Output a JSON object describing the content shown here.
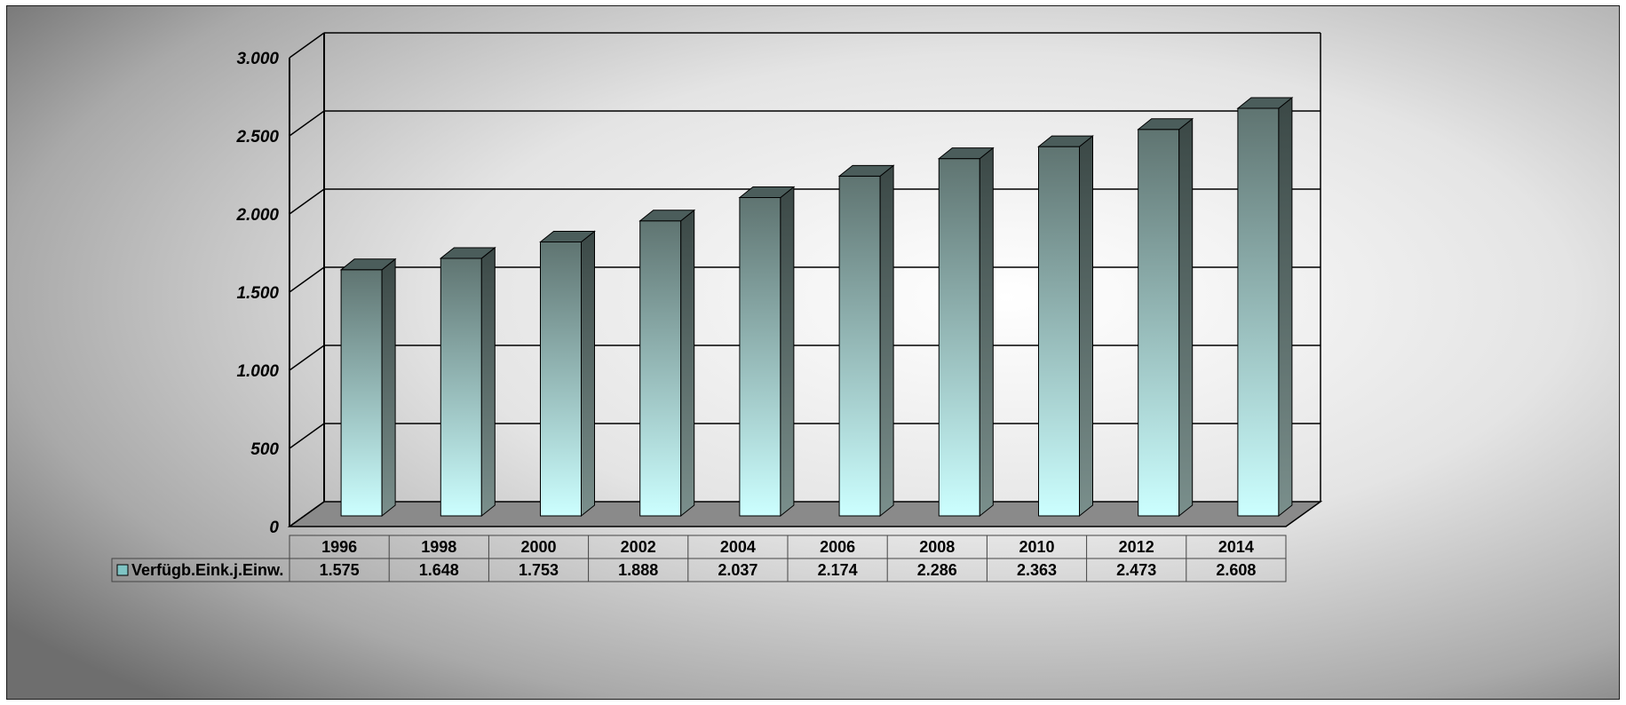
{
  "chart_data": {
    "type": "bar",
    "categories": [
      "1996",
      "1998",
      "2000",
      "2002",
      "2004",
      "2006",
      "2008",
      "2010",
      "2012",
      "2014"
    ],
    "series": [
      {
        "name": "Verfügb.Eink.j.Einw.",
        "values": [
          1575,
          1648,
          1753,
          1888,
          2037,
          2174,
          2286,
          2363,
          2473,
          2608
        ],
        "value_labels": [
          "1.575",
          "1.648",
          "1.753",
          "1.888",
          "2.037",
          "2.174",
          "2.286",
          "2.363",
          "2.473",
          "2.608"
        ]
      }
    ],
    "yticks": [
      {
        "value": 0,
        "label": "0"
      },
      {
        "value": 500,
        "label": "500"
      },
      {
        "value": 1000,
        "label": "1.000"
      },
      {
        "value": 1500,
        "label": "1.500"
      },
      {
        "value": 2000,
        "label": "2.000"
      },
      {
        "value": 2500,
        "label": "2.500"
      },
      {
        "value": 3000,
        "label": "3.000"
      }
    ],
    "ylim": [
      0,
      3000
    ],
    "three_d": true,
    "grid": true,
    "data_table": true,
    "legend_in_table": true,
    "colors": {
      "bar_top": "#5f7471",
      "bar_bottom": "#ccffff",
      "bar_side": "#3b4846",
      "bar_cap": "#4b5d5b",
      "floor": "#8a8a8a",
      "legend_key": "#7fc4c4"
    }
  }
}
